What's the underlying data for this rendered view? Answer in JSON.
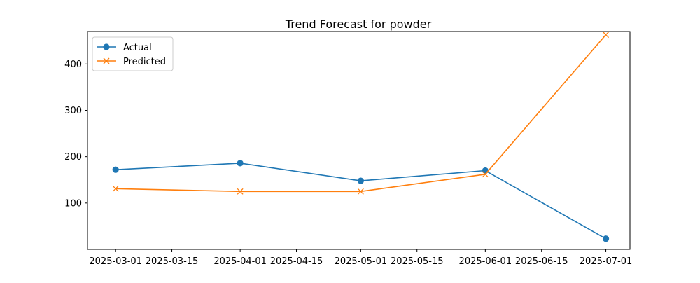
{
  "chart_data": {
    "type": "line",
    "title": "Trend Forecast for powder",
    "xlabel": "",
    "ylabel": "",
    "x_axis_type": "date",
    "xlim": [
      "2025-02-22",
      "2025-07-07"
    ],
    "ylim": [
      0,
      470
    ],
    "x_ticks": [
      "2025-03-01",
      "2025-03-15",
      "2025-04-01",
      "2025-04-15",
      "2025-05-01",
      "2025-05-15",
      "2025-06-01",
      "2025-06-15",
      "2025-07-01"
    ],
    "y_ticks": [
      100,
      200,
      300,
      400
    ],
    "grid": false,
    "legend": "top-left",
    "series": [
      {
        "name": "Actual",
        "color": "#1f77b4",
        "marker": "circle",
        "x": [
          "2025-03-01",
          "2025-04-01",
          "2025-05-01",
          "2025-06-01",
          "2025-07-01"
        ],
        "values": [
          172,
          186,
          148,
          170,
          23
        ]
      },
      {
        "name": "Predicted",
        "color": "#ff7f0e",
        "marker": "x",
        "x": [
          "2025-03-01",
          "2025-04-01",
          "2025-05-01",
          "2025-06-01",
          "2025-07-01"
        ],
        "values": [
          131,
          125,
          125,
          162,
          463
        ]
      }
    ]
  }
}
